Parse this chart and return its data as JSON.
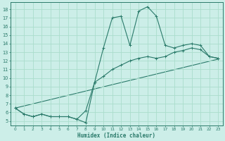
{
  "xlabel": "Humidex (Indice chaleur)",
  "bg_color": "#cceee8",
  "grid_color": "#aaddcc",
  "line_color": "#2a7a6a",
  "x_ticks": [
    0,
    1,
    2,
    3,
    4,
    5,
    6,
    7,
    8,
    9,
    10,
    11,
    12,
    13,
    14,
    15,
    16,
    17,
    18,
    19,
    20,
    21,
    22,
    23
  ],
  "y_ticks": [
    5,
    6,
    7,
    8,
    9,
    10,
    11,
    12,
    13,
    14,
    15,
    16,
    17,
    18
  ],
  "ylim": [
    4.5,
    18.8
  ],
  "xlim": [
    -0.5,
    23.5
  ],
  "curve1_x": [
    0,
    1,
    2,
    3,
    4,
    5,
    6,
    7,
    8,
    9,
    10,
    11,
    12,
    13,
    14,
    15,
    16,
    17,
    18,
    19,
    20,
    21,
    22,
    23
  ],
  "curve1_y": [
    6.5,
    5.8,
    5.5,
    5.8,
    5.5,
    5.5,
    5.5,
    5.2,
    4.8,
    9.5,
    13.5,
    17.0,
    17.2,
    13.8,
    17.8,
    18.3,
    17.2,
    13.8,
    13.5,
    13.8,
    14.0,
    13.8,
    12.5,
    12.3
  ],
  "curve2_x": [
    0,
    1,
    2,
    3,
    4,
    5,
    6,
    7,
    8,
    9,
    10,
    11,
    12,
    13,
    14,
    15,
    16,
    17,
    18,
    19,
    20,
    21,
    22,
    23
  ],
  "curve2_y": [
    6.5,
    5.8,
    5.5,
    5.8,
    5.5,
    5.5,
    5.5,
    5.2,
    6.2,
    9.5,
    10.2,
    11.0,
    11.5,
    12.0,
    12.3,
    12.5,
    12.3,
    12.5,
    13.0,
    13.2,
    13.5,
    13.3,
    12.5,
    12.3
  ],
  "trend_x": [
    0,
    23
  ],
  "trend_y": [
    6.5,
    12.2
  ]
}
